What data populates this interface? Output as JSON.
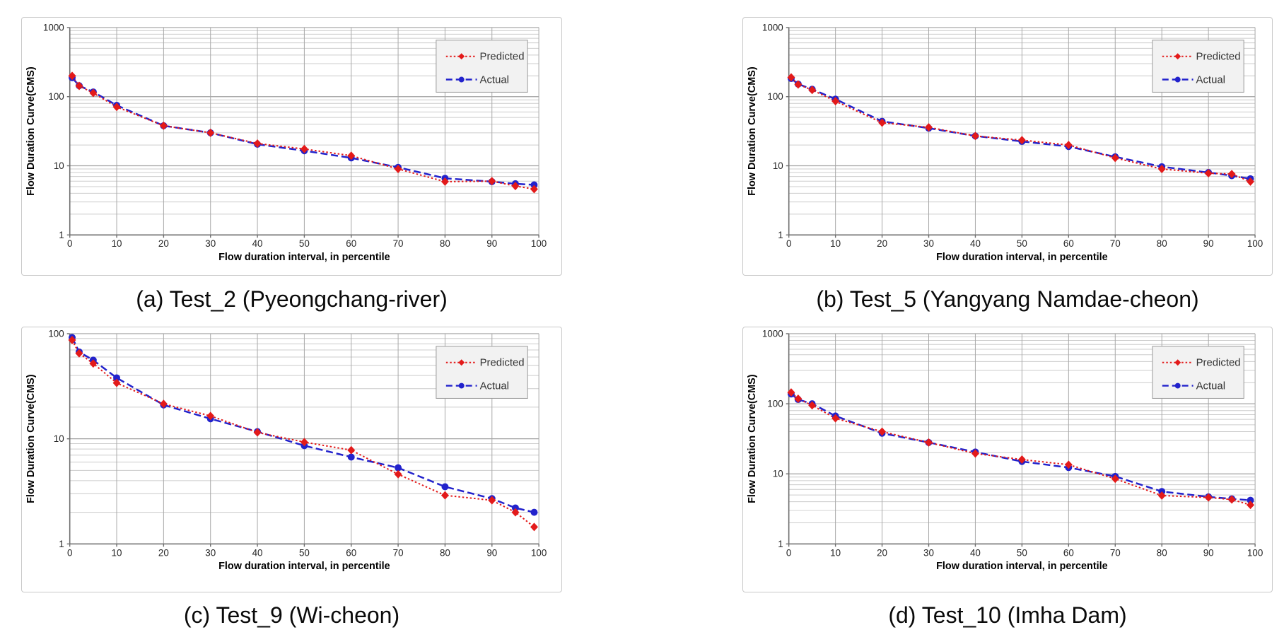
{
  "figure": {
    "background": "#ffffff",
    "description": "Four flow duration curve comparison charts (Predicted vs Actual)"
  },
  "chart_style": {
    "predicted_color": "#e31a1a",
    "actual_color": "#2222cc",
    "legend_bg": "#f2f2f2",
    "legend_border": "#999999",
    "axis_color": "#6e6e6e",
    "major_grid_color": "#a0a0a0",
    "minor_grid_color": "#cccccc",
    "vertical_grid_color": "#a8a8a8",
    "tick_label_color": "#262626",
    "axis_title_color": "#000000",
    "legend_text_color": "#333333"
  },
  "chart_data": [
    {
      "id": "a",
      "caption": "(a) Test_2 (Pyeongchang-river)",
      "type": "line",
      "xlabel": "Flow duration interval, in percentile",
      "ylabel": "Flow Duration Curve(CMS)",
      "x": [
        0.5,
        2,
        5,
        10,
        20,
        30,
        40,
        50,
        60,
        70,
        80,
        90,
        95,
        99
      ],
      "xlim": [
        0,
        100
      ],
      "x_ticks": [
        0,
        10,
        20,
        30,
        40,
        50,
        60,
        70,
        80,
        90,
        100
      ],
      "y_scale": "log",
      "ylim": [
        1,
        1000
      ],
      "y_ticks": [
        1,
        10,
        100,
        1000
      ],
      "grid": true,
      "legend_position": "top-right",
      "series": [
        {
          "name": "Predicted",
          "marker": "diamond",
          "line": "dotted",
          "values": [
            200,
            143,
            113,
            71,
            38,
            30,
            21,
            17.5,
            14,
            9,
            5.9,
            6.0,
            5.1,
            4.6
          ]
        },
        {
          "name": "Actual",
          "marker": "circle",
          "line": "dashed",
          "values": [
            188,
            144,
            117,
            75,
            38,
            30,
            20.5,
            16.5,
            13,
            9.5,
            6.6,
            5.9,
            5.5,
            5.3
          ]
        }
      ]
    },
    {
      "id": "b",
      "caption": "(b) Test_5 (Yangyang Namdae-cheon)",
      "type": "line",
      "xlabel": "Flow duration interval, in percentile",
      "ylabel": "Flow Duration Curve(CMS)",
      "x": [
        0.5,
        2,
        5,
        10,
        20,
        30,
        40,
        50,
        60,
        70,
        80,
        90,
        95,
        99
      ],
      "xlim": [
        0,
        100
      ],
      "x_ticks": [
        0,
        10,
        20,
        30,
        40,
        50,
        60,
        70,
        80,
        90,
        100
      ],
      "y_scale": "log",
      "ylim": [
        1,
        1000
      ],
      "y_ticks": [
        1,
        10,
        100,
        1000
      ],
      "grid": true,
      "legend_position": "top-right",
      "series": [
        {
          "name": "Predicted",
          "marker": "diamond",
          "line": "dotted",
          "values": [
            190,
            150,
            125,
            86,
            42,
            36,
            27,
            23.5,
            20,
            13,
            9,
            7.8,
            7.6,
            5.9
          ]
        },
        {
          "name": "Actual",
          "marker": "circle",
          "line": "dashed",
          "values": [
            183,
            152,
            128,
            92,
            44,
            35,
            27,
            22.5,
            19,
            13.5,
            9.7,
            8.0,
            7.2,
            6.5
          ]
        }
      ]
    },
    {
      "id": "c",
      "caption": "(c) Test_9 (Wi-cheon)",
      "type": "line",
      "xlabel": "Flow duration interval, in percentile",
      "ylabel": "Flow Duration Curve(CMS)",
      "x": [
        0.5,
        2,
        5,
        10,
        20,
        30,
        40,
        50,
        60,
        70,
        80,
        90,
        95,
        99
      ],
      "xlim": [
        0,
        100
      ],
      "x_ticks": [
        0,
        10,
        20,
        30,
        40,
        50,
        60,
        70,
        80,
        90,
        100
      ],
      "y_scale": "log",
      "ylim": [
        1,
        100
      ],
      "y_ticks": [
        1,
        10,
        100
      ],
      "grid": true,
      "legend_position": "top-right",
      "series": [
        {
          "name": "Predicted",
          "marker": "diamond",
          "line": "dotted",
          "values": [
            87,
            65,
            52,
            34,
            21.5,
            16.5,
            11.5,
            9.3,
            7.8,
            4.6,
            2.9,
            2.6,
            2.0,
            1.45
          ]
        },
        {
          "name": "Actual",
          "marker": "circle",
          "line": "dashed",
          "values": [
            92,
            67,
            56,
            38,
            21,
            15.5,
            11.7,
            8.6,
            6.7,
            5.3,
            3.5,
            2.7,
            2.2,
            2.0
          ]
        }
      ]
    },
    {
      "id": "d",
      "caption": "(d) Test_10 (Imha Dam)",
      "type": "line",
      "xlabel": "Flow duration interval, in percentile",
      "ylabel": "Flow Duration Curve(CMS)",
      "x": [
        0.5,
        2,
        5,
        10,
        20,
        30,
        40,
        50,
        60,
        70,
        80,
        90,
        95,
        99
      ],
      "xlim": [
        0,
        100
      ],
      "x_ticks": [
        0,
        10,
        20,
        30,
        40,
        50,
        60,
        70,
        80,
        90,
        100
      ],
      "y_scale": "log",
      "ylim": [
        1,
        1000
      ],
      "y_ticks": [
        1,
        10,
        100,
        1000
      ],
      "grid": true,
      "legend_position": "top-right",
      "series": [
        {
          "name": "Predicted",
          "marker": "diamond",
          "line": "dotted",
          "values": [
            145,
            118,
            95,
            62,
            40,
            28,
            19.5,
            16,
            13.5,
            8.5,
            4.9,
            4.6,
            4.3,
            3.6
          ]
        },
        {
          "name": "Actual",
          "marker": "circle",
          "line": "dashed",
          "values": [
            138,
            115,
            100,
            67,
            38,
            28,
            20.5,
            15,
            12.3,
            9.2,
            5.6,
            4.7,
            4.4,
            4.2
          ]
        }
      ]
    }
  ]
}
